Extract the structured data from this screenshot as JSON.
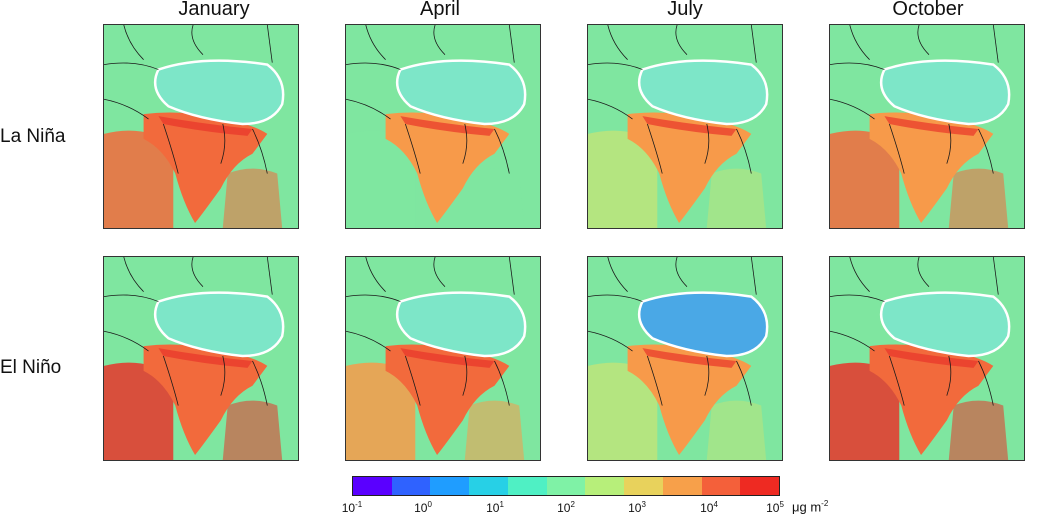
{
  "figure": {
    "columns": [
      "January",
      "April",
      "July",
      "October"
    ],
    "rows": [
      "La Niña",
      "El Niño"
    ]
  },
  "colorbar": {
    "ticks": [
      {
        "base": "10",
        "exp": "-1"
      },
      {
        "base": "10",
        "exp": "0"
      },
      {
        "base": "10",
        "exp": "1"
      },
      {
        "base": "10",
        "exp": "2"
      },
      {
        "base": "10",
        "exp": "3"
      },
      {
        "base": "10",
        "exp": "4"
      },
      {
        "base": "10",
        "exp": "5"
      }
    ],
    "unit_base": "μg m",
    "unit_exp": "-2",
    "colors": [
      "#5a00ff",
      "#2f62ff",
      "#1f9dff",
      "#27d0e6",
      "#4ff0c4",
      "#7ff2a6",
      "#b7ef7a",
      "#e8d25c",
      "#f7a04a",
      "#f4603a",
      "#ee2a22"
    ]
  },
  "palette": {
    "sea_green": "#7fe6a0",
    "plateau": "#7de6c8",
    "plateau_blue": "#4aa8e6",
    "orange": "#f79a4a",
    "red_orange": "#f26a3c",
    "red": "#e8342a",
    "olive": "#bde47a",
    "border": "#1a1a1a",
    "tp_outline": "#ffffff"
  }
}
